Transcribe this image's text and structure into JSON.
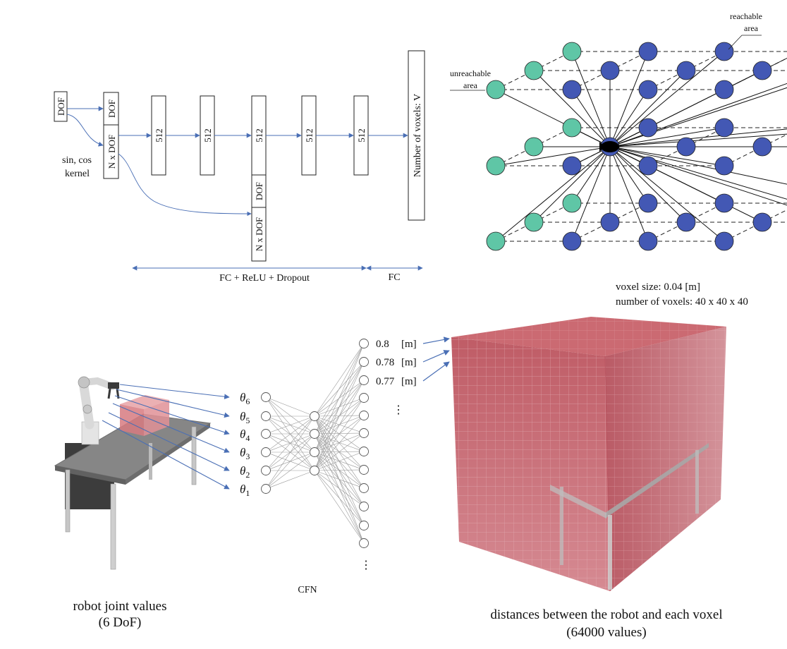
{
  "network": {
    "input_dof": "DOF",
    "branch_dof": "DOF",
    "branch_ndof": "N x DOF",
    "kernel_line1": "sin, cos",
    "kernel_line2": "kernel",
    "layers": [
      "512",
      "512",
      "512",
      "512",
      "512"
    ],
    "skip_dof": "DOF",
    "skip_ndof": "N x DOF",
    "output": "Number of voxels: V",
    "span_fc_relu": "FC + ReLU + Dropout",
    "span_fc": "FC"
  },
  "voxel_diagram": {
    "reachable_line1": "reachable",
    "reachable_line2": "area",
    "unreachable_line1": "unreachable",
    "unreachable_line2": "area",
    "colors": {
      "unreachable": "#5fc6a6",
      "reachable": "#4358b4",
      "robot": "#000000"
    }
  },
  "cfn": {
    "thetas": [
      {
        "sym": "θ",
        "sub": "6"
      },
      {
        "sym": "θ",
        "sub": "5"
      },
      {
        "sym": "θ",
        "sub": "4"
      },
      {
        "sym": "θ",
        "sub": "3"
      },
      {
        "sym": "θ",
        "sub": "2"
      },
      {
        "sym": "θ",
        "sub": "1"
      }
    ],
    "outputs": [
      "0.8",
      "0.78",
      "0.77"
    ],
    "output_unit": "[m]",
    "dots": "⋮",
    "label": "CFN"
  },
  "voxel_info": {
    "size": "voxel size: 0.04 [m]",
    "count": "number of voxels: 40 x 40 x 40",
    "color": "#c0505a"
  },
  "captions": {
    "left_line1": "robot joint values",
    "left_line2": "(6 DoF)",
    "right_line1": "distances between the robot and each voxel",
    "right_line2": "(64000 values)"
  }
}
